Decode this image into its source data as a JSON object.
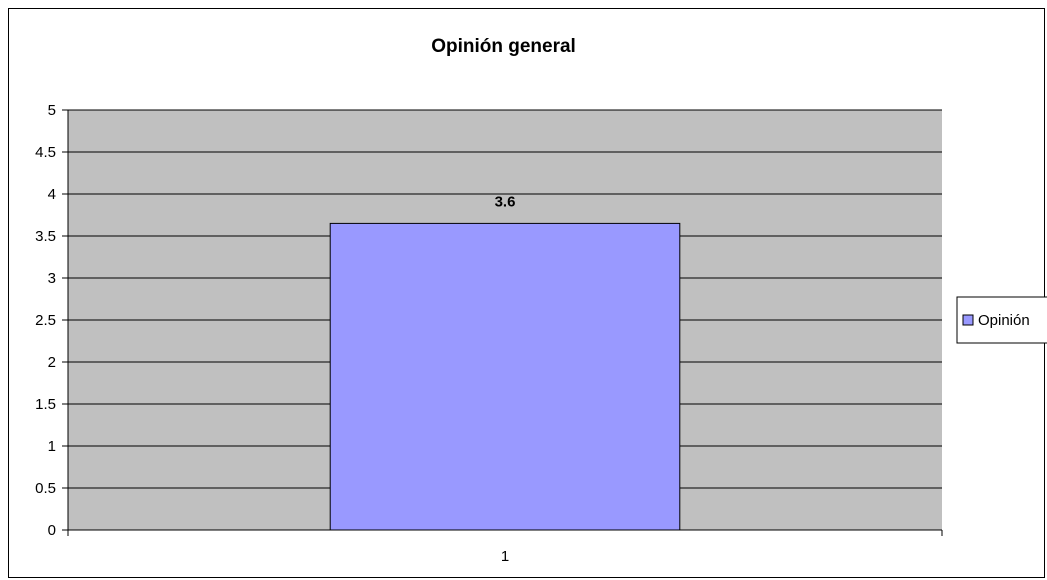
{
  "chart_data": {
    "type": "bar",
    "title": "Opinión general",
    "categories": [
      "1"
    ],
    "series": [
      {
        "name": "Opinión",
        "values": [
          3.65
        ],
        "data_labels": [
          "3.6"
        ]
      }
    ],
    "y_ticks": [
      "0",
      "0.5",
      "1",
      "1.5",
      "2",
      "2.5",
      "3",
      "3.5",
      "4",
      "4.5",
      "5"
    ],
    "ylim": [
      0,
      5
    ],
    "grid": true,
    "legend_position": "right",
    "colors": {
      "bar": "#9999ff",
      "plot_background": "#c0c0c0",
      "gridline": "#000000"
    }
  }
}
